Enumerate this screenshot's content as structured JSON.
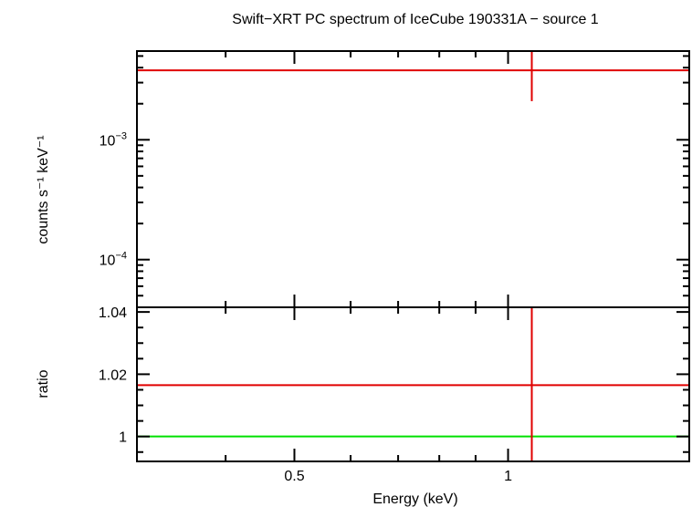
{
  "chart_data": [
    {
      "type": "scatter",
      "title": "Swift−XRT PC spectrum of IceCube 190331A − source 1",
      "ylabel": "counts s⁻¹ keV⁻¹",
      "x_scale": "log",
      "y_scale": "log",
      "xlim": [
        0.3,
        1.8
      ],
      "ylim": [
        4e-05,
        0.0055
      ],
      "ytick_labels": [
        {
          "value": 0.001,
          "base": "10",
          "exp": "−3"
        },
        {
          "value": 0.0001,
          "base": "10",
          "exp": "−4"
        }
      ],
      "series": [
        {
          "color": "#e00000",
          "points": [
            {
              "x": 1.08,
              "y": 0.0038,
              "y_low": 0.0021,
              "y_high": 0.0055,
              "x_low": 0.3,
              "x_high": 1.8
            }
          ]
        }
      ]
    },
    {
      "type": "scatter",
      "xlabel": "Energy (keV)",
      "ylabel": "ratio",
      "x_scale": "log",
      "xlim": [
        0.3,
        1.8
      ],
      "ylim": [
        0.992,
        1.0415
      ],
      "xtick_labels": [
        {
          "value": 0.5,
          "label": "0.5"
        },
        {
          "value": 1,
          "label": "1"
        }
      ],
      "ytick_labels": [
        {
          "value": 1.04,
          "label": "1.04"
        },
        {
          "value": 1.02,
          "label": "1.02"
        },
        {
          "value": 1,
          "label": "1"
        }
      ],
      "series": [
        {
          "color": "#e00000",
          "points": [
            {
              "x": 1.08,
              "y": 1.0165,
              "y_low": 0.992,
              "y_high": 1.0415,
              "x_low": 0.3,
              "x_high": 1.8
            }
          ]
        }
      ],
      "reference_line": {
        "y": 1,
        "color": "#00e000"
      }
    }
  ]
}
